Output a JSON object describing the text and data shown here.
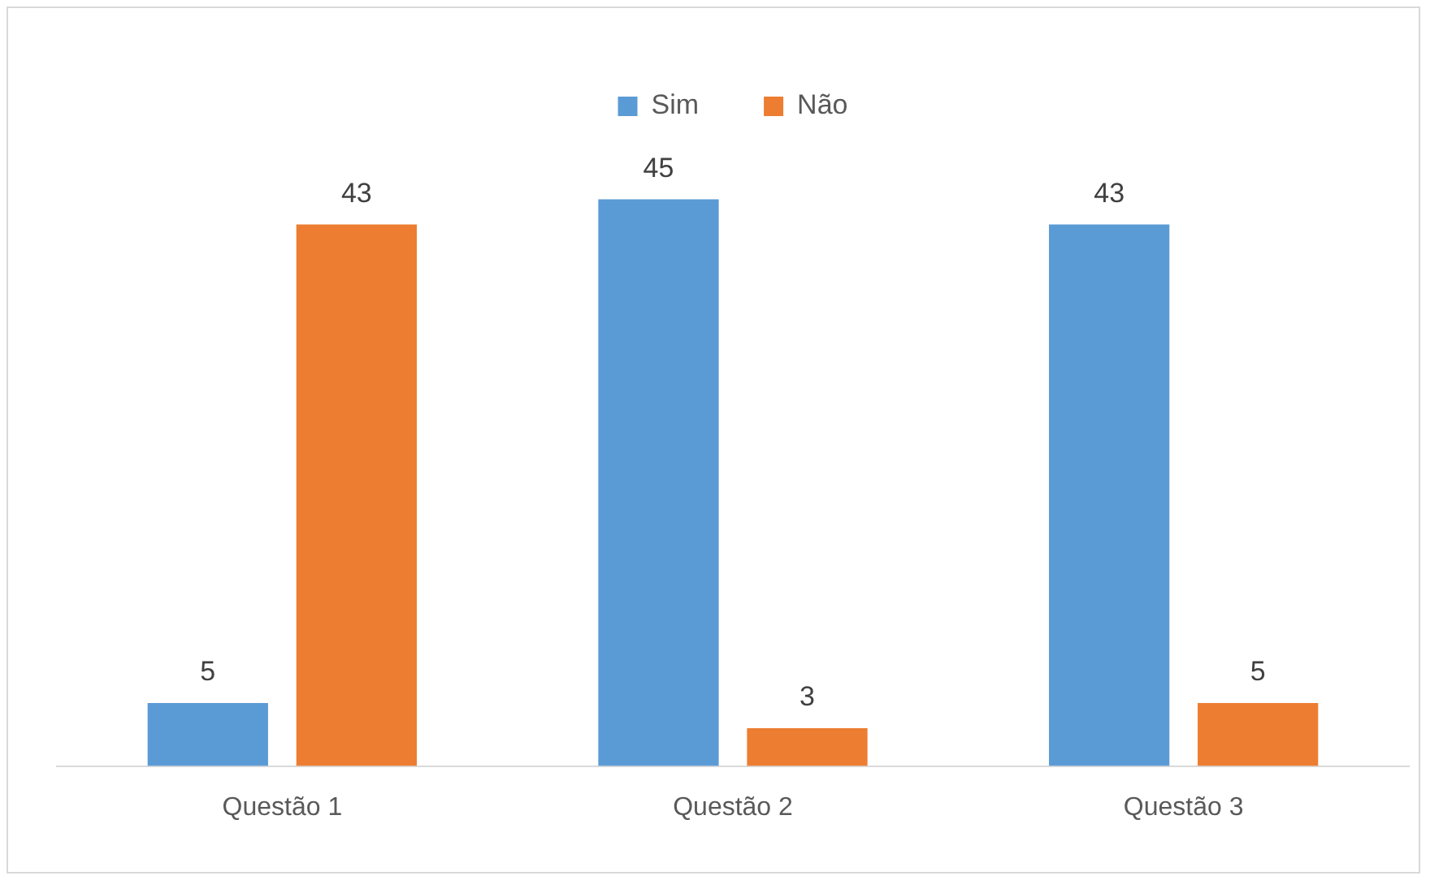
{
  "chart_data": {
    "type": "bar",
    "categories": [
      "Questão 1",
      "Questão 2",
      "Questão 3"
    ],
    "series": [
      {
        "name": "Sim",
        "color": "#5b9bd5",
        "values": [
          5,
          45,
          43
        ]
      },
      {
        "name": "Não",
        "color": "#ed7d31",
        "values": [
          43,
          3,
          5
        ]
      }
    ],
    "tick_labels": "x",
    "grid": false,
    "legend": "top",
    "data_labels": true
  }
}
